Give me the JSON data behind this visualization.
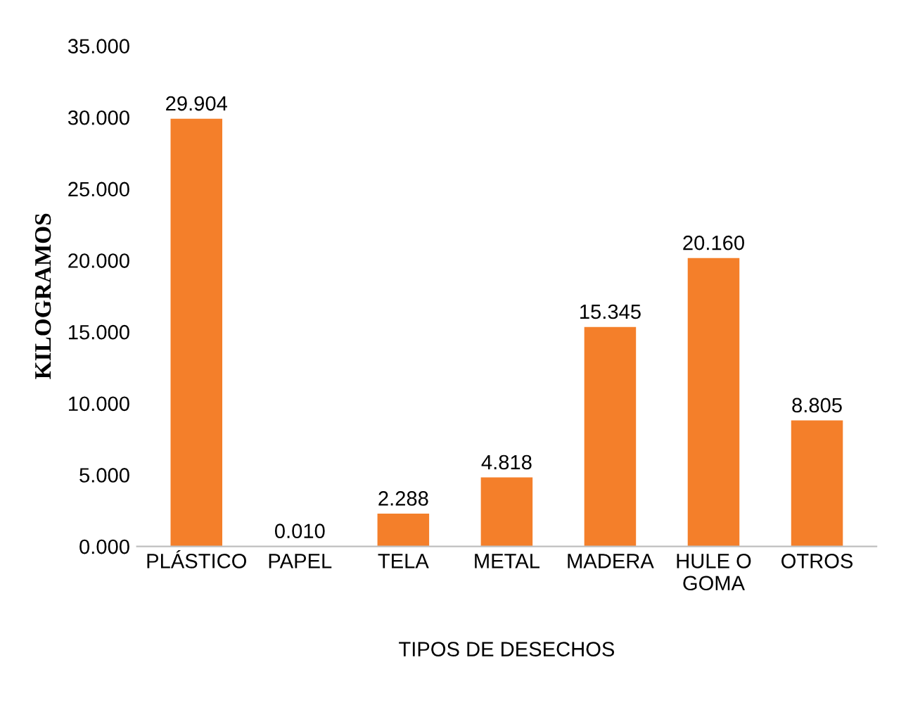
{
  "chart_data": {
    "type": "bar",
    "xlabel": "TIPOS DE DESECHOS",
    "ylabel": "KILOGRAMOS",
    "categories": [
      "PLÁSTICO",
      "PAPEL",
      "TELA",
      "METAL",
      "MADERA",
      "HULE O\nGOMA",
      "OTROS"
    ],
    "values": [
      29.904,
      0.01,
      2.288,
      4.818,
      15.345,
      20.16,
      8.805
    ],
    "value_labels": [
      "29.904",
      "0.010",
      "2.288",
      "4.818",
      "15.345",
      "20.160",
      "8.805"
    ],
    "color": "#f47f2a",
    "ylim": [
      0,
      35
    ],
    "yticks": [
      {
        "value": 0,
        "label": "0.000"
      },
      {
        "value": 5,
        "label": "5.000"
      },
      {
        "value": 10,
        "label": "10.000"
      },
      {
        "value": 15,
        "label": "15.000"
      },
      {
        "value": 20,
        "label": "20.000"
      },
      {
        "value": 25,
        "label": "25.000"
      },
      {
        "value": 30,
        "label": "30.000"
      },
      {
        "value": 35,
        "label": "35.000"
      }
    ],
    "grid": false,
    "legend": false
  }
}
